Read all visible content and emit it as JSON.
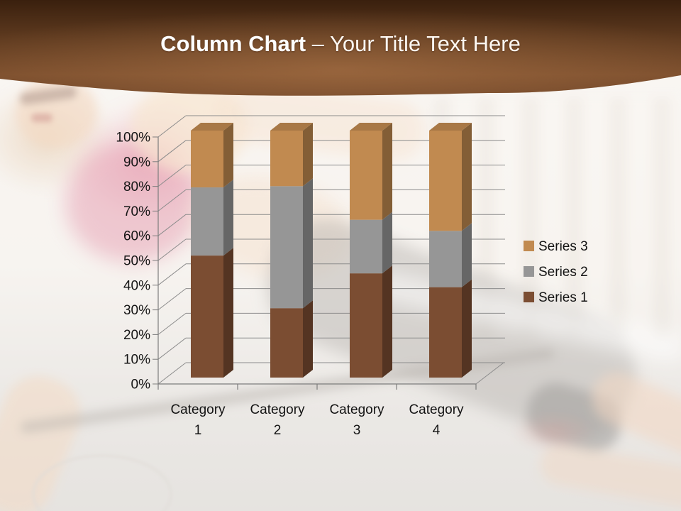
{
  "slide": {
    "title": {
      "bold": "Column Chart",
      "regular": "– Your Title Text Here"
    }
  },
  "colors": {
    "header_top": "#3A200E",
    "header_mid": "#6F4326",
    "header_bottom": "#7B4E2D",
    "title_text": "#FFFFFF",
    "grid_line": "#8C8C8C",
    "axis_line": "#7D7D7D",
    "label_text": "#141414"
  },
  "chart_data": {
    "type": "bar",
    "subtype": "3d-100-percent-stacked-column",
    "title": "",
    "xlabel": "",
    "ylabel": "",
    "categories": [
      "Category 1",
      "Category 2",
      "Category 3",
      "Category 4"
    ],
    "series": [
      {
        "name": "Series 1",
        "color": "#7B4D32",
        "values_pct": [
          49.4,
          28.1,
          42.2,
          36.6
        ]
      },
      {
        "name": "Series 2",
        "color": "#969696",
        "values_pct": [
          27.6,
          49.4,
          21.7,
          22.8
        ]
      },
      {
        "name": "Series 3",
        "color": "#C18A50",
        "values_pct": [
          23.0,
          22.5,
          36.1,
          40.6
        ]
      }
    ],
    "y_tick_labels": [
      "0%",
      "10%",
      "20%",
      "30%",
      "40%",
      "50%",
      "60%",
      "70%",
      "80%",
      "90%",
      "100%"
    ],
    "ylim": [
      0,
      100
    ],
    "grid": "horizontal",
    "legend": {
      "position": "right",
      "order_top_to_bottom": [
        "Series 3",
        "Series 2",
        "Series 1"
      ]
    }
  }
}
